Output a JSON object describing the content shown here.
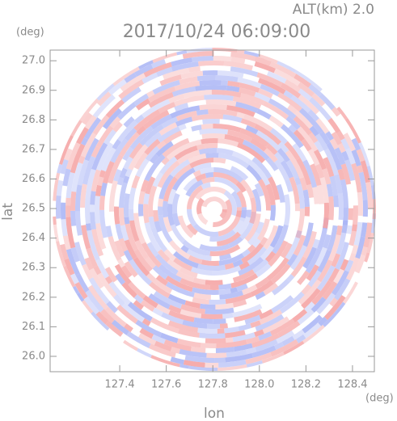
{
  "chart_data": {
    "type": "radar-field",
    "title": "2017/10/24 06:09:00",
    "subtitle": "ALT(km) 2.0",
    "x_label": "lon",
    "y_label": "lat",
    "x_unit": "(deg)",
    "y_unit": "(deg)",
    "xlim": [
      127.101,
      128.494
    ],
    "ylim": [
      25.948,
      27.036
    ],
    "xticks": [
      127.4,
      127.6,
      127.8,
      {
        "value": 128,
        "label": "128.0"
      },
      128.2,
      128.4
    ],
    "yticks": [
      {
        "value": 26,
        "label": "26.0"
      },
      26.1,
      26.2,
      26.3,
      26.4,
      26.5,
      26.6,
      26.7,
      26.8,
      26.9,
      {
        "value": 27,
        "label": "27.0"
      }
    ]
  }
}
